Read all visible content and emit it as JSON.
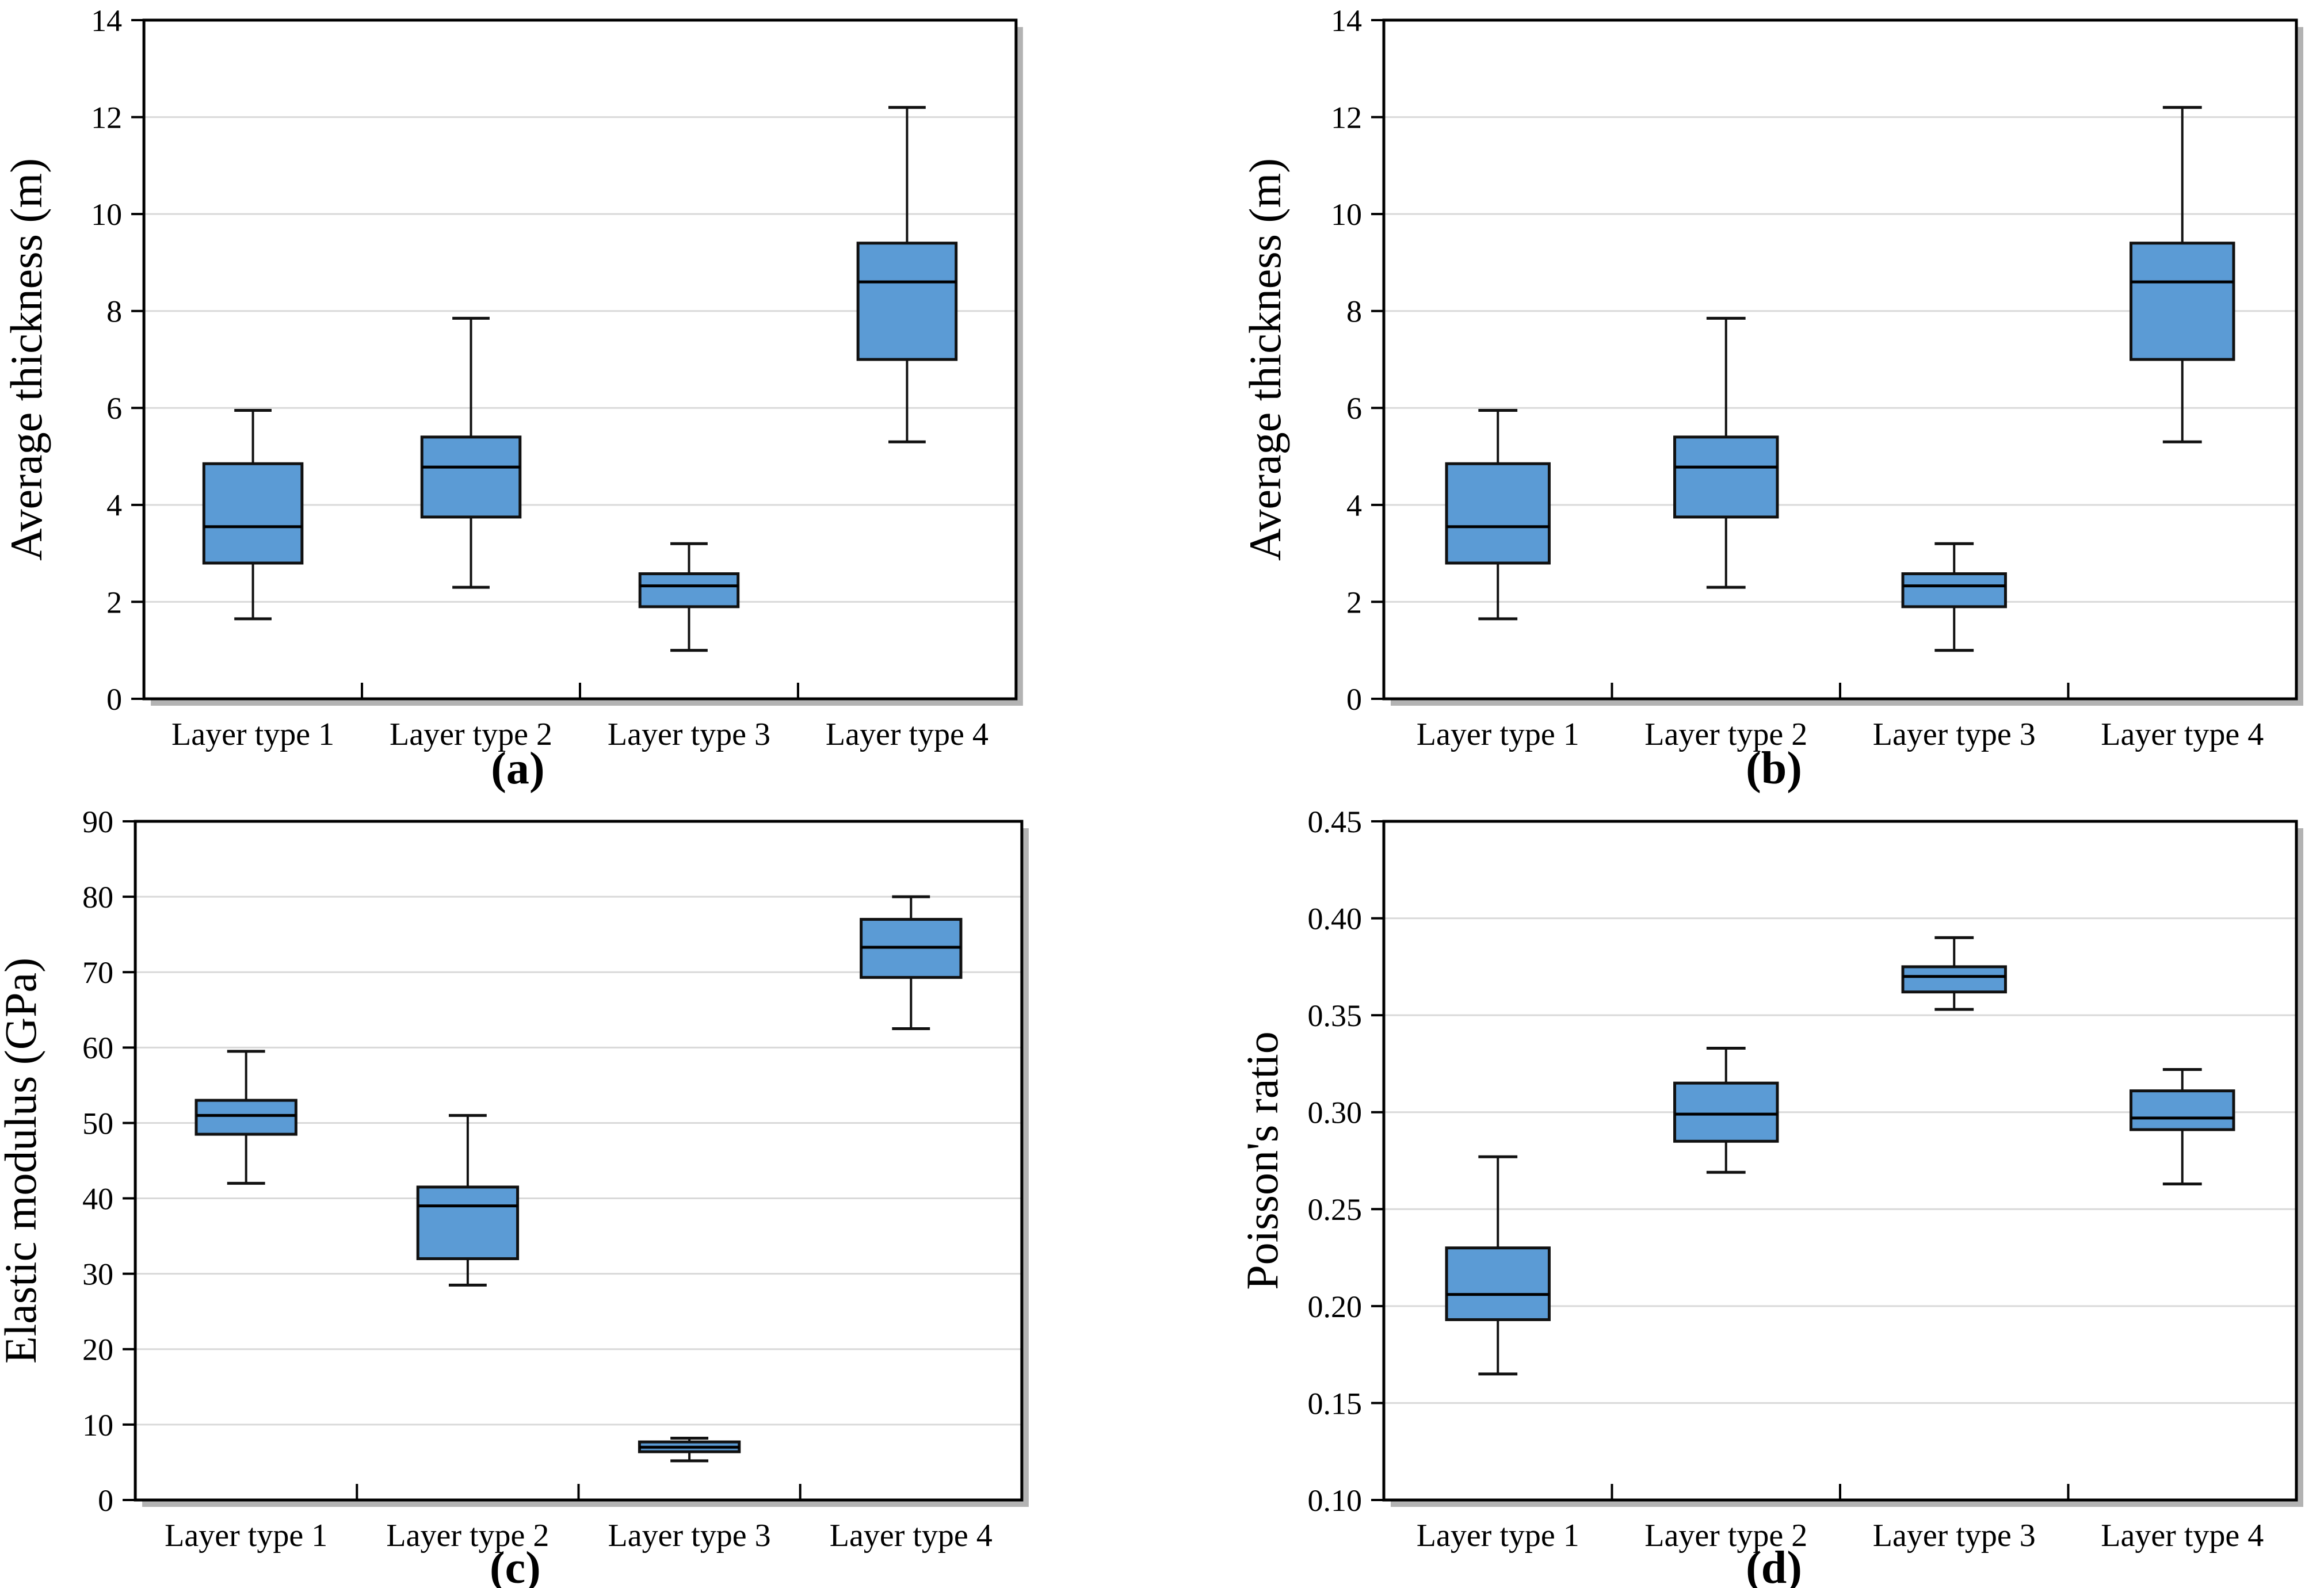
{
  "figure": {
    "background": "#ffffff",
    "panel_captions": [
      "(a)",
      "(b)",
      "(c)",
      "(d)"
    ]
  },
  "colors": {
    "box_fill": "#5B9BD5",
    "box_stroke": "#111111",
    "whisker": "#111111",
    "median": "#000000",
    "gridline": "#d9d9d9",
    "frame": "#000000",
    "shadow": "#9a9a9a",
    "text": "#000000",
    "plot_background": "#ffffff"
  },
  "chart_data": [
    {
      "id": "a",
      "type": "boxplot",
      "caption": "(a)",
      "ylabel": "Average thickness (m)",
      "ylim": [
        0,
        14
      ],
      "ytick_step": 2,
      "ytick_decimals": 0,
      "ytick_labels": [
        "0",
        "2",
        "4",
        "6",
        "8",
        "10",
        "12",
        "14"
      ],
      "grid": true,
      "legend": "none",
      "categories": [
        "Layer type 1",
        "Layer type 2",
        "Layer type 3",
        "Layer type 4"
      ],
      "series": [
        {
          "name": "Layer type 1",
          "min": 1.65,
          "q1": 2.8,
          "median": 3.55,
          "q3": 4.85,
          "max": 5.95
        },
        {
          "name": "Layer type 2",
          "min": 2.3,
          "q1": 3.75,
          "median": 4.78,
          "q3": 5.4,
          "max": 7.85
        },
        {
          "name": "Layer type 3",
          "min": 1.0,
          "q1": 1.9,
          "median": 2.33,
          "q3": 2.58,
          "max": 3.2
        },
        {
          "name": "Layer type 4",
          "min": 5.3,
          "q1": 7.0,
          "median": 8.6,
          "q3": 9.4,
          "max": 12.2
        }
      ]
    },
    {
      "id": "b",
      "type": "boxplot",
      "caption": "(b)",
      "ylabel": "Average thickness (m)",
      "ylim": [
        0,
        14
      ],
      "ytick_step": 2,
      "ytick_decimals": 0,
      "ytick_labels": [
        "0",
        "2",
        "4",
        "6",
        "8",
        "10",
        "12",
        "14"
      ],
      "grid": true,
      "legend": "none",
      "categories": [
        "Layer type 1",
        "Layer type 2",
        "Layer type 3",
        "Layer type 4"
      ],
      "series": [
        {
          "name": "Layer type 1",
          "min": 1.65,
          "q1": 2.8,
          "median": 3.55,
          "q3": 4.85,
          "max": 5.95
        },
        {
          "name": "Layer type 2",
          "min": 2.3,
          "q1": 3.75,
          "median": 4.78,
          "q3": 5.4,
          "max": 7.85
        },
        {
          "name": "Layer type 3",
          "min": 1.0,
          "q1": 1.9,
          "median": 2.33,
          "q3": 2.58,
          "max": 3.2
        },
        {
          "name": "Layer type 4",
          "min": 5.3,
          "q1": 7.0,
          "median": 8.6,
          "q3": 9.4,
          "max": 12.2
        }
      ]
    },
    {
      "id": "c",
      "type": "boxplot",
      "caption": "(c)",
      "ylabel": "Elastic modulus (GPa)",
      "ylim": [
        0,
        90
      ],
      "ytick_step": 10,
      "ytick_decimals": 0,
      "ytick_labels": [
        "0",
        "10",
        "20",
        "30",
        "40",
        "50",
        "60",
        "70",
        "80",
        "90"
      ],
      "grid": true,
      "legend": "none",
      "categories": [
        "Layer type 1",
        "Layer type 2",
        "Layer type 3",
        "Layer type 4"
      ],
      "series": [
        {
          "name": "Layer type 1",
          "min": 42.0,
          "q1": 48.5,
          "median": 51.0,
          "q3": 53.0,
          "max": 59.5
        },
        {
          "name": "Layer type 2",
          "min": 28.5,
          "q1": 32.0,
          "median": 39.0,
          "q3": 41.5,
          "max": 51.0
        },
        {
          "name": "Layer type 3",
          "min": 5.2,
          "q1": 6.4,
          "median": 7.0,
          "q3": 7.7,
          "max": 8.2
        },
        {
          "name": "Layer type 4",
          "min": 62.5,
          "q1": 69.3,
          "median": 73.3,
          "q3": 77.0,
          "max": 80.0
        }
      ]
    },
    {
      "id": "d",
      "type": "boxplot",
      "caption": "(d)",
      "ylabel": "Poisson's ratio",
      "ylim": [
        0.1,
        0.45
      ],
      "ytick_step": 0.05,
      "ytick_decimals": 2,
      "ytick_labels": [
        "0.10",
        "0.15",
        "0.20",
        "0.25",
        "0.30",
        "0.35",
        "0.40",
        "0.45"
      ],
      "grid": true,
      "legend": "none",
      "categories": [
        "Layer type 1",
        "Layer type 2",
        "Layer type 3",
        "Layer type 4"
      ],
      "series": [
        {
          "name": "Layer type 1",
          "min": 0.165,
          "q1": 0.193,
          "median": 0.206,
          "q3": 0.23,
          "max": 0.277
        },
        {
          "name": "Layer type 2",
          "min": 0.269,
          "q1": 0.285,
          "median": 0.299,
          "q3": 0.315,
          "max": 0.333
        },
        {
          "name": "Layer type 3",
          "min": 0.353,
          "q1": 0.362,
          "median": 0.37,
          "q3": 0.375,
          "max": 0.39
        },
        {
          "name": "Layer type 4",
          "min": 0.263,
          "q1": 0.291,
          "median": 0.297,
          "q3": 0.311,
          "max": 0.322
        }
      ]
    }
  ]
}
